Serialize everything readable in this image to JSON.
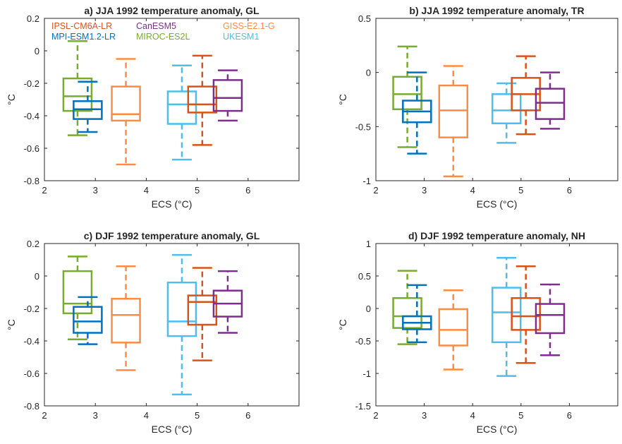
{
  "figure": {
    "legend": [
      {
        "name": "IPSL-CM6A-LR",
        "color": "#d95319"
      },
      {
        "name": "CanESM5",
        "color": "#7e2f8e"
      },
      {
        "name": "GISS-E2.1-G",
        "color": "#ff8c42"
      },
      {
        "name": "MPI-ESM1.2-LR",
        "color": "#0072bd"
      },
      {
        "name": "MIROC-ES2L",
        "color": "#77ac30"
      },
      {
        "name": "UKESM1",
        "color": "#4dbeee"
      }
    ]
  },
  "chart_data": [
    {
      "type": "box",
      "title": "a) JJA 1992 temperature anomaly, GL",
      "xlabel": "ECS (°C)",
      "ylabel": "°C",
      "xlim": [
        2,
        7
      ],
      "ylim": [
        -0.8,
        0.2
      ],
      "xticks": [
        "2",
        "3",
        "4",
        "5",
        "6"
      ],
      "yticks": [
        "0.2",
        "0",
        "-0.2",
        "-0.4",
        "-0.6",
        "-0.8"
      ],
      "grid": false,
      "legend_position": "top-left",
      "series": [
        {
          "name": "MIROC-ES2L",
          "color": "#77ac30",
          "x": 2.65,
          "whisker_low": -0.52,
          "q1": -0.37,
          "median": -0.28,
          "q3": -0.17,
          "whisker_high": 0.06
        },
        {
          "name": "MPI-ESM1.2-LR",
          "color": "#0072bd",
          "x": 2.85,
          "whisker_low": -0.5,
          "q1": -0.42,
          "median": -0.36,
          "q3": -0.31,
          "whisker_high": -0.19
        },
        {
          "name": "GISS-E2.1-G",
          "color": "#ff8c42",
          "x": 3.6,
          "whisker_low": -0.7,
          "q1": -0.43,
          "median": -0.39,
          "q3": -0.22,
          "whisker_high": -0.05
        },
        {
          "name": "UKESM1",
          "color": "#4dbeee",
          "x": 4.7,
          "whisker_low": -0.67,
          "q1": -0.45,
          "median": -0.33,
          "q3": -0.25,
          "whisker_high": -0.09
        },
        {
          "name": "IPSL-CM6A-LR",
          "color": "#d95319",
          "x": 5.1,
          "whisker_low": -0.58,
          "q1": -0.38,
          "median": -0.33,
          "q3": -0.22,
          "whisker_high": -0.03
        },
        {
          "name": "CanESM5",
          "color": "#7e2f8e",
          "x": 5.6,
          "whisker_low": -0.43,
          "q1": -0.37,
          "median": -0.29,
          "q3": -0.18,
          "whisker_high": -0.12
        }
      ]
    },
    {
      "type": "box",
      "title": "b) JJA 1992 temperature anomaly, TR",
      "xlabel": "ECS (°C)",
      "ylabel": "°C",
      "xlim": [
        2,
        7
      ],
      "ylim": [
        -1,
        0.5
      ],
      "xticks": [
        "2",
        "3",
        "4",
        "5",
        "6"
      ],
      "yticks": [
        "0.5",
        "0",
        "-0.5",
        "-1"
      ],
      "grid": false,
      "series": [
        {
          "name": "MIROC-ES2L",
          "color": "#77ac30",
          "x": 2.65,
          "whisker_low": -0.69,
          "q1": -0.34,
          "median": -0.2,
          "q3": -0.04,
          "whisker_high": 0.24
        },
        {
          "name": "MPI-ESM1.2-LR",
          "color": "#0072bd",
          "x": 2.85,
          "whisker_low": -0.75,
          "q1": -0.46,
          "median": -0.36,
          "q3": -0.26,
          "whisker_high": 0.0
        },
        {
          "name": "GISS-E2.1-G",
          "color": "#ff8c42",
          "x": 3.6,
          "whisker_low": -0.96,
          "q1": -0.6,
          "median": -0.35,
          "q3": -0.12,
          "whisker_high": 0.06
        },
        {
          "name": "UKESM1",
          "color": "#4dbeee",
          "x": 4.7,
          "whisker_low": -0.65,
          "q1": -0.47,
          "median": -0.35,
          "q3": -0.2,
          "whisker_high": -0.1
        },
        {
          "name": "IPSL-CM6A-LR",
          "color": "#d95319",
          "x": 5.1,
          "whisker_low": -0.57,
          "q1": -0.35,
          "median": -0.2,
          "q3": -0.05,
          "whisker_high": 0.15
        },
        {
          "name": "CanESM5",
          "color": "#7e2f8e",
          "x": 5.6,
          "whisker_low": -0.52,
          "q1": -0.43,
          "median": -0.28,
          "q3": -0.15,
          "whisker_high": 0.0
        }
      ]
    },
    {
      "type": "box",
      "title": "c) DJF 1992 temperature anomaly, GL",
      "xlabel": "ECS (°C)",
      "ylabel": "°C",
      "xlim": [
        2,
        7
      ],
      "ylim": [
        -0.8,
        0.2
      ],
      "xticks": [
        "2",
        "3",
        "4",
        "5",
        "6"
      ],
      "yticks": [
        "0.2",
        "0",
        "-0.2",
        "-0.4",
        "-0.6",
        "-0.8"
      ],
      "grid": false,
      "series": [
        {
          "name": "MIROC-ES2L",
          "color": "#77ac30",
          "x": 2.65,
          "whisker_low": -0.39,
          "q1": -0.23,
          "median": -0.17,
          "q3": 0.03,
          "whisker_high": 0.12
        },
        {
          "name": "MPI-ESM1.2-LR",
          "color": "#0072bd",
          "x": 2.85,
          "whisker_low": -0.42,
          "q1": -0.35,
          "median": -0.28,
          "q3": -0.19,
          "whisker_high": -0.13
        },
        {
          "name": "GISS-E2.1-G",
          "color": "#ff8c42",
          "x": 3.6,
          "whisker_low": -0.58,
          "q1": -0.41,
          "median": -0.24,
          "q3": -0.14,
          "whisker_high": 0.06
        },
        {
          "name": "UKESM1",
          "color": "#4dbeee",
          "x": 4.7,
          "whisker_low": -0.73,
          "q1": -0.37,
          "median": -0.28,
          "q3": -0.04,
          "whisker_high": 0.13
        },
        {
          "name": "IPSL-CM6A-LR",
          "color": "#d95319",
          "x": 5.1,
          "whisker_low": -0.52,
          "q1": -0.3,
          "median": -0.16,
          "q3": -0.12,
          "whisker_high": 0.05
        },
        {
          "name": "CanESM5",
          "color": "#7e2f8e",
          "x": 5.6,
          "whisker_low": -0.35,
          "q1": -0.25,
          "median": -0.17,
          "q3": -0.09,
          "whisker_high": 0.03
        }
      ]
    },
    {
      "type": "box",
      "title": "d) DJF 1992 temperature anomaly, NH",
      "xlabel": "ECS (°C)",
      "ylabel": "°C",
      "xlim": [
        2,
        7
      ],
      "ylim": [
        -1.5,
        1
      ],
      "xticks": [
        "2",
        "3",
        "4",
        "5",
        "6"
      ],
      "yticks": [
        "1",
        "0.5",
        "0",
        "-0.5",
        "-1",
        "-1.5"
      ],
      "grid": false,
      "series": [
        {
          "name": "MIROC-ES2L",
          "color": "#77ac30",
          "x": 2.65,
          "whisker_low": -0.55,
          "q1": -0.3,
          "median": -0.12,
          "q3": 0.16,
          "whisker_high": 0.58
        },
        {
          "name": "MPI-ESM1.2-LR",
          "color": "#0072bd",
          "x": 2.85,
          "whisker_low": -0.52,
          "q1": -0.32,
          "median": -0.22,
          "q3": -0.12,
          "whisker_high": 0.36
        },
        {
          "name": "GISS-E2.1-G",
          "color": "#ff8c42",
          "x": 3.6,
          "whisker_low": -0.94,
          "q1": -0.57,
          "median": -0.33,
          "q3": -0.01,
          "whisker_high": 0.28
        },
        {
          "name": "UKESM1",
          "color": "#4dbeee",
          "x": 4.7,
          "whisker_low": -1.04,
          "q1": -0.52,
          "median": -0.06,
          "q3": 0.32,
          "whisker_high": 0.78
        },
        {
          "name": "IPSL-CM6A-LR",
          "color": "#d95319",
          "x": 5.1,
          "whisker_low": -0.84,
          "q1": -0.33,
          "median": -0.12,
          "q3": 0.16,
          "whisker_high": 0.65
        },
        {
          "name": "CanESM5",
          "color": "#7e2f8e",
          "x": 5.6,
          "whisker_low": -0.72,
          "q1": -0.38,
          "median": -0.1,
          "q3": 0.07,
          "whisker_high": 0.37
        }
      ]
    }
  ]
}
